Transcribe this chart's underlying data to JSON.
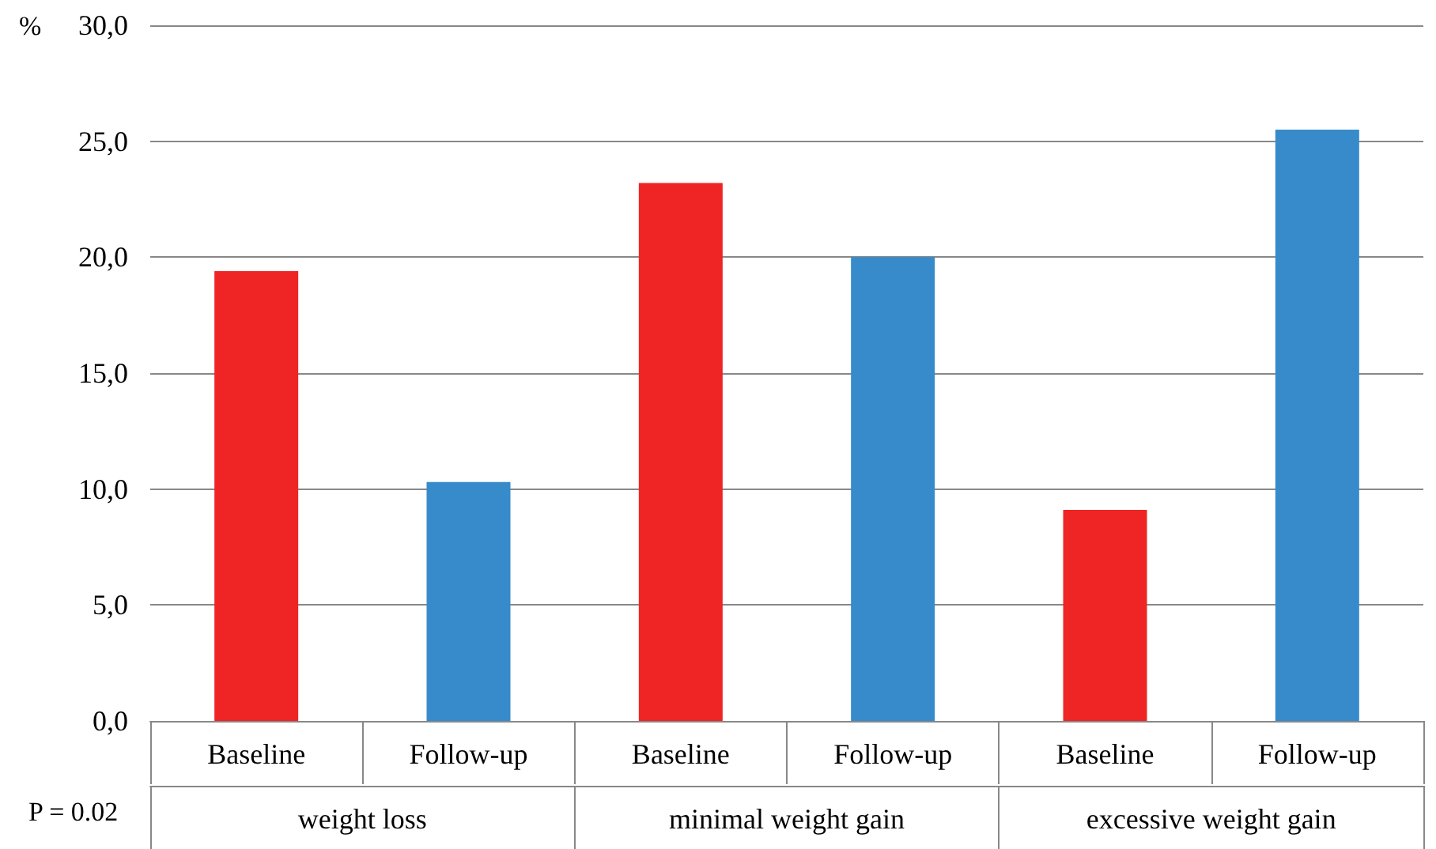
{
  "chart_data": {
    "type": "bar",
    "ylabel": "%",
    "categories": [
      "Baseline",
      "Follow-up",
      "Baseline",
      "Follow-up",
      "Baseline",
      "Follow-up"
    ],
    "values": [
      19.4,
      10.3,
      23.2,
      20.0,
      9.1,
      25.5
    ],
    "colors": [
      "#ee2524",
      "#378bcb",
      "#ee2524",
      "#378bcb",
      "#ee2524",
      "#378bcb"
    ],
    "ylim": [
      0,
      30
    ],
    "yticks": [
      {
        "value": 0,
        "label": "0,0"
      },
      {
        "value": 5,
        "label": "5,0"
      },
      {
        "value": 10,
        "label": "10,0"
      },
      {
        "value": 15,
        "label": "15,0"
      },
      {
        "value": 20,
        "label": "20,0"
      },
      {
        "value": 25,
        "label": "25,0"
      },
      {
        "value": 30,
        "label": "30,0"
      }
    ],
    "grid": "y",
    "annotations": [
      "P = 0.02",
      "weight loss",
      "minimal weight gain",
      "excessive weight gain"
    ]
  }
}
